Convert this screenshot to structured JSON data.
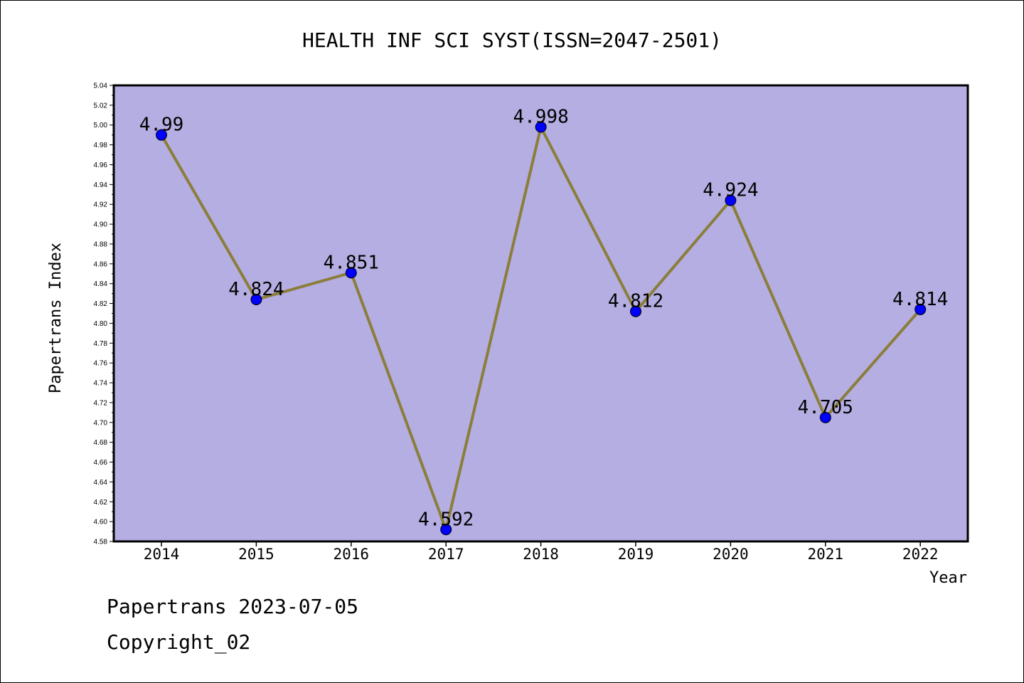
{
  "chart_data": {
    "type": "line",
    "title": "HEALTH INF SCI SYST(ISSN=2047-2501)",
    "xlabel": "Year",
    "ylabel": "Papertrans Index",
    "categories": [
      "2014",
      "2015",
      "2016",
      "2017",
      "2018",
      "2019",
      "2020",
      "2021",
      "2022"
    ],
    "series": [
      {
        "values": [
          4.99,
          4.824,
          4.851,
          4.592,
          4.998,
          4.812,
          4.924,
          4.705,
          4.814
        ],
        "data_labels": [
          "4.99",
          "4.824",
          "4.851",
          "4.592",
          "4.998",
          "4.812",
          "4.924",
          "4.705",
          "4.814"
        ]
      }
    ],
    "ylim": [
      4.58,
      5.04
    ],
    "yticks": [
      "4.58",
      "4.60",
      "4.62",
      "4.64",
      "4.66",
      "4.68",
      "4.70",
      "4.72",
      "4.74",
      "4.76",
      "4.78",
      "4.80",
      "4.82",
      "4.84",
      "4.86",
      "4.88",
      "4.90",
      "4.92",
      "4.94",
      "4.96",
      "4.98",
      "5.00",
      "5.02",
      "5.04"
    ],
    "grid": false,
    "colors": {
      "plot_background": "#b4aee2",
      "line": "#8b7d3a",
      "marker": "#0000ff"
    }
  },
  "footer": {
    "line1": "Papertrans 2023-07-05",
    "line2": "Copyright_02"
  }
}
